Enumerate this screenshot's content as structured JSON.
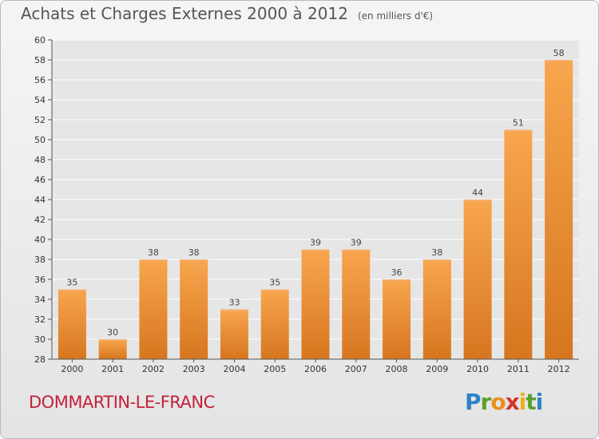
{
  "title": "Achats et Charges Externes 2000 à 2012",
  "subtitle": "(en milliers d'€)",
  "commune": "DOMMARTIN-LE-FRANC",
  "logo": "Proxiti",
  "colors": {
    "bar_light": "#f7a54f",
    "bar_dark": "#d97a22",
    "commune": "#c4213a",
    "grid": "#ffffff"
  },
  "chart_data": {
    "type": "bar",
    "title": "Achats et Charges Externes 2000 à 2012",
    "subtitle": "(en milliers d'€)",
    "xlabel": "",
    "ylabel": "",
    "categories": [
      "2000",
      "2001",
      "2002",
      "2003",
      "2004",
      "2005",
      "2006",
      "2007",
      "2008",
      "2009",
      "2010",
      "2011",
      "2012"
    ],
    "values": [
      35,
      30,
      38,
      38,
      33,
      35,
      39,
      39,
      36,
      38,
      44,
      51,
      58
    ],
    "ylim": [
      28,
      60
    ],
    "ytick_step": 2,
    "grid": true,
    "legend": "none"
  }
}
